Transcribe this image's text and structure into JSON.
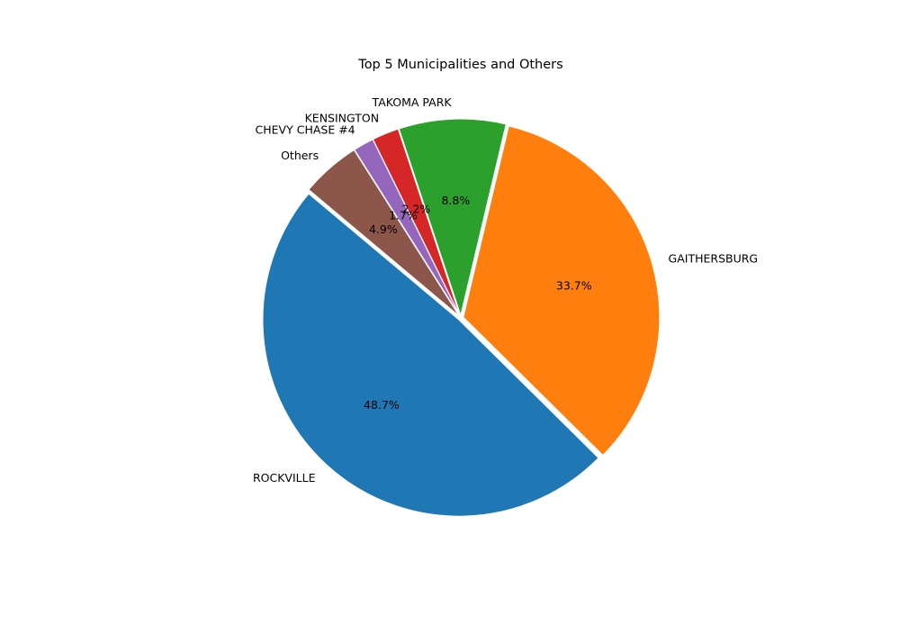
{
  "chart_data": {
    "type": "pie",
    "title": "Top 5 Municipalities and Others",
    "categories": [
      "ROCKVILLE",
      "GAITHERSBURG",
      "TAKOMA PARK",
      "KENSINGTON",
      "CHEVY CHASE #4",
      "Others"
    ],
    "values": [
      48.7,
      33.7,
      8.8,
      2.2,
      1.7,
      4.9
    ],
    "value_labels": [
      "48.7%",
      "33.7%",
      "8.8%",
      "2.2%",
      "1.7%",
      "4.9%"
    ],
    "colors": [
      "#1f77b4",
      "#ff7f0e",
      "#2ca02c",
      "#d62728",
      "#9467bd",
      "#8c564b"
    ],
    "start_angle_deg": 140,
    "direction": "counterclockwise",
    "slice_edge_color": "#ffffff",
    "legend": "none"
  }
}
